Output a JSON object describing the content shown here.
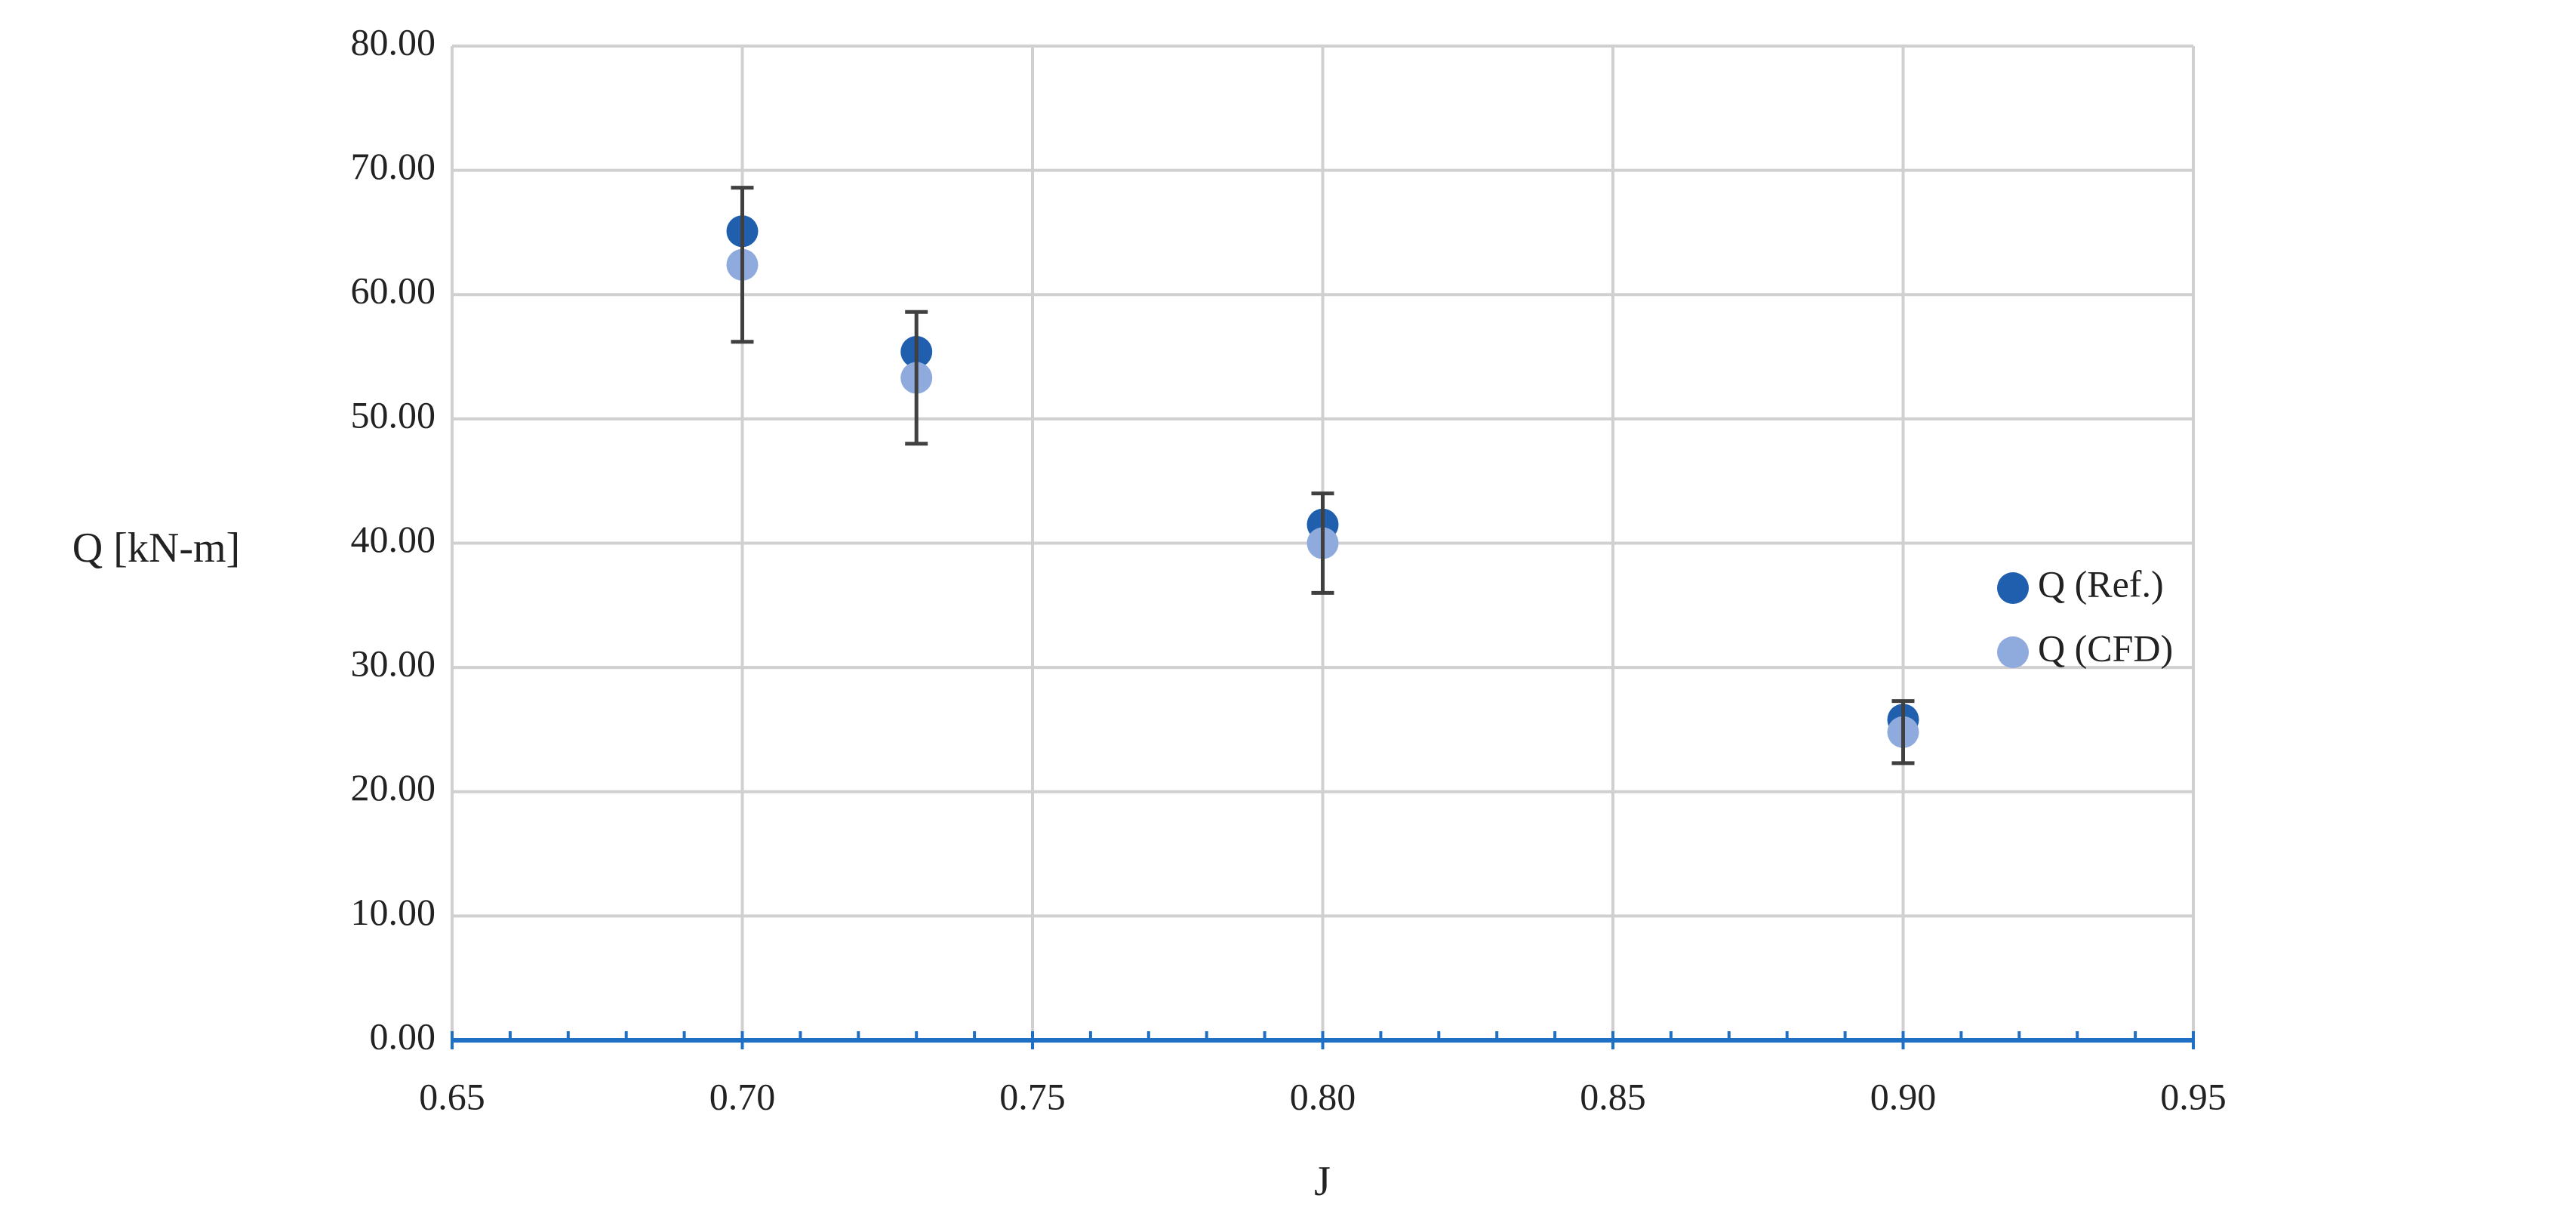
{
  "chart_data": {
    "type": "scatter",
    "xlabel": "J",
    "ylabel": "Q [kN-m]",
    "x": [
      0.7,
      0.73,
      0.8,
      0.9
    ],
    "series": [
      {
        "name": "Q (Ref.)",
        "color": "#1f5fae",
        "values": [
          65.1,
          55.4,
          41.5,
          25.8
        ]
      },
      {
        "name": "Q (CFD)",
        "color": "#8faadc",
        "values": [
          62.4,
          53.3,
          40.0,
          24.8
        ],
        "errors": [
          6.2,
          5.3,
          4.0,
          2.5
        ],
        "error_color": "#404040"
      }
    ],
    "xlim": [
      0.65,
      0.95
    ],
    "xticks": [
      0.65,
      {
        "value": 0.7,
        "label": "0.70"
      },
      0.75,
      {
        "value": 0.8,
        "label": "0.80"
      },
      0.85,
      {
        "value": 0.9,
        "label": "0.90"
      },
      0.95
    ],
    "xminorticks": [
      0.66,
      0.67,
      0.68,
      0.69,
      0.71,
      0.72,
      0.73,
      0.74,
      0.76,
      0.77,
      0.78,
      0.79,
      0.81,
      0.82,
      0.83,
      0.84,
      0.86,
      0.87,
      0.88,
      0.89,
      0.91,
      0.92,
      0.93,
      0.94
    ],
    "ylim": [
      0,
      80
    ],
    "yticks": [
      {
        "value": 0,
        "label": "0.00"
      },
      {
        "value": 10,
        "label": "10.00"
      },
      {
        "value": 20,
        "label": "20.00"
      },
      {
        "value": 30,
        "label": "30.00"
      },
      {
        "value": 40,
        "label": "40.00"
      },
      {
        "value": 50,
        "label": "50.00"
      },
      {
        "value": 60,
        "label": "60.00"
      },
      {
        "value": 70,
        "label": "70.00"
      },
      {
        "value": 80,
        "label": "80.00"
      }
    ],
    "grid": true,
    "axis_color": "#1f6fc5",
    "legend": "right"
  }
}
